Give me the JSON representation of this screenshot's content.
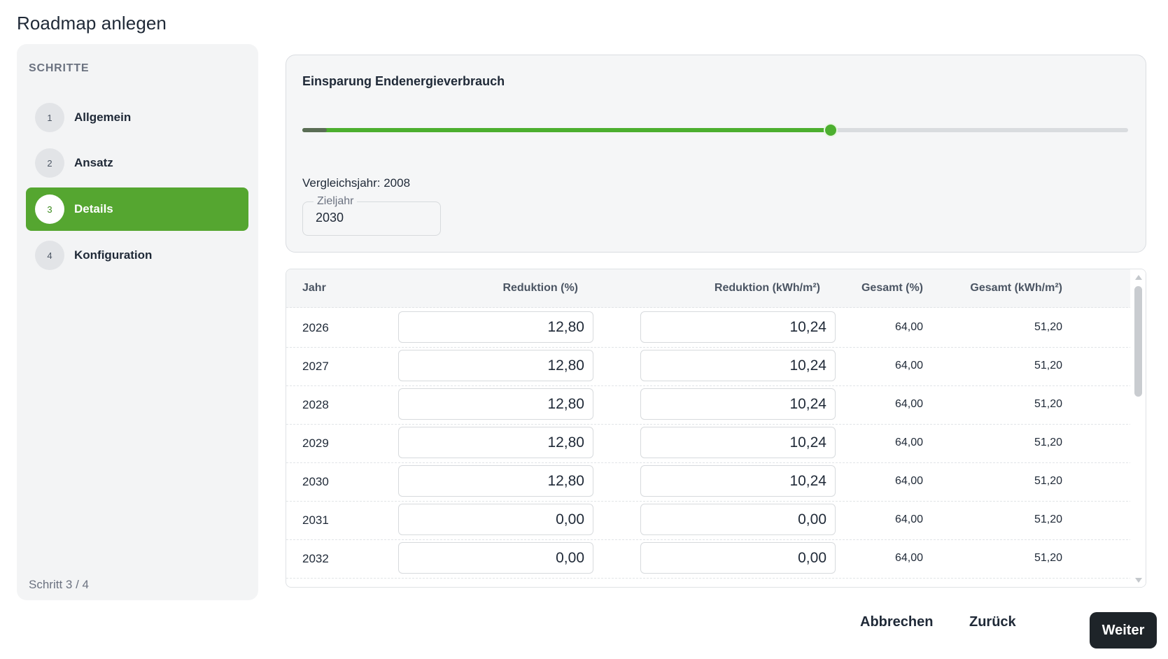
{
  "title": "Roadmap anlegen",
  "sidebar": {
    "heading": "SCHRITTE",
    "steps": [
      {
        "number": "1",
        "label": "Allgemein"
      },
      {
        "number": "2",
        "label": "Ansatz"
      },
      {
        "number": "3",
        "label": "Details"
      },
      {
        "number": "4",
        "label": "Konfiguration"
      }
    ],
    "active_step": 3,
    "footer": "Schritt 3 / 4"
  },
  "panel": {
    "title": "Einsparung Endenergieverbrauch",
    "slider_fraction": 0.64,
    "slider_base_fraction": 0.03,
    "vergleichsjahr": "Vergleichsjahr: 2008",
    "zieljahr_label": "Zieljahr",
    "zieljahr_value": "2030"
  },
  "table": {
    "headers": {
      "jahr": "Jahr",
      "reduktion_pct": "Reduktion (%)",
      "reduktion_kwh": "Reduktion (kWh/m²)",
      "gesamt_pct": "Gesamt (%)",
      "gesamt_kwh": "Gesamt (kWh/m²)"
    },
    "rows": [
      {
        "jahr": "2026",
        "reduktion_pct": "12,80",
        "reduktion_kwh": "10,24",
        "gesamt_pct": "64,00",
        "gesamt_kwh": "51,20"
      },
      {
        "jahr": "2027",
        "reduktion_pct": "12,80",
        "reduktion_kwh": "10,24",
        "gesamt_pct": "64,00",
        "gesamt_kwh": "51,20"
      },
      {
        "jahr": "2028",
        "reduktion_pct": "12,80",
        "reduktion_kwh": "10,24",
        "gesamt_pct": "64,00",
        "gesamt_kwh": "51,20"
      },
      {
        "jahr": "2029",
        "reduktion_pct": "12,80",
        "reduktion_kwh": "10,24",
        "gesamt_pct": "64,00",
        "gesamt_kwh": "51,20"
      },
      {
        "jahr": "2030",
        "reduktion_pct": "12,80",
        "reduktion_kwh": "10,24",
        "gesamt_pct": "64,00",
        "gesamt_kwh": "51,20"
      },
      {
        "jahr": "2031",
        "reduktion_pct": "0,00",
        "reduktion_kwh": "0,00",
        "gesamt_pct": "64,00",
        "gesamt_kwh": "51,20"
      },
      {
        "jahr": "2032",
        "reduktion_pct": "0,00",
        "reduktion_kwh": "0,00",
        "gesamt_pct": "64,00",
        "gesamt_kwh": "51,20"
      }
    ]
  },
  "footer": {
    "cancel_label": "Abbrechen",
    "back_label": "Zurück",
    "next_label": "Weiter"
  },
  "colors": {
    "accent": "#55a630",
    "primary_button": "#1e2429"
  }
}
